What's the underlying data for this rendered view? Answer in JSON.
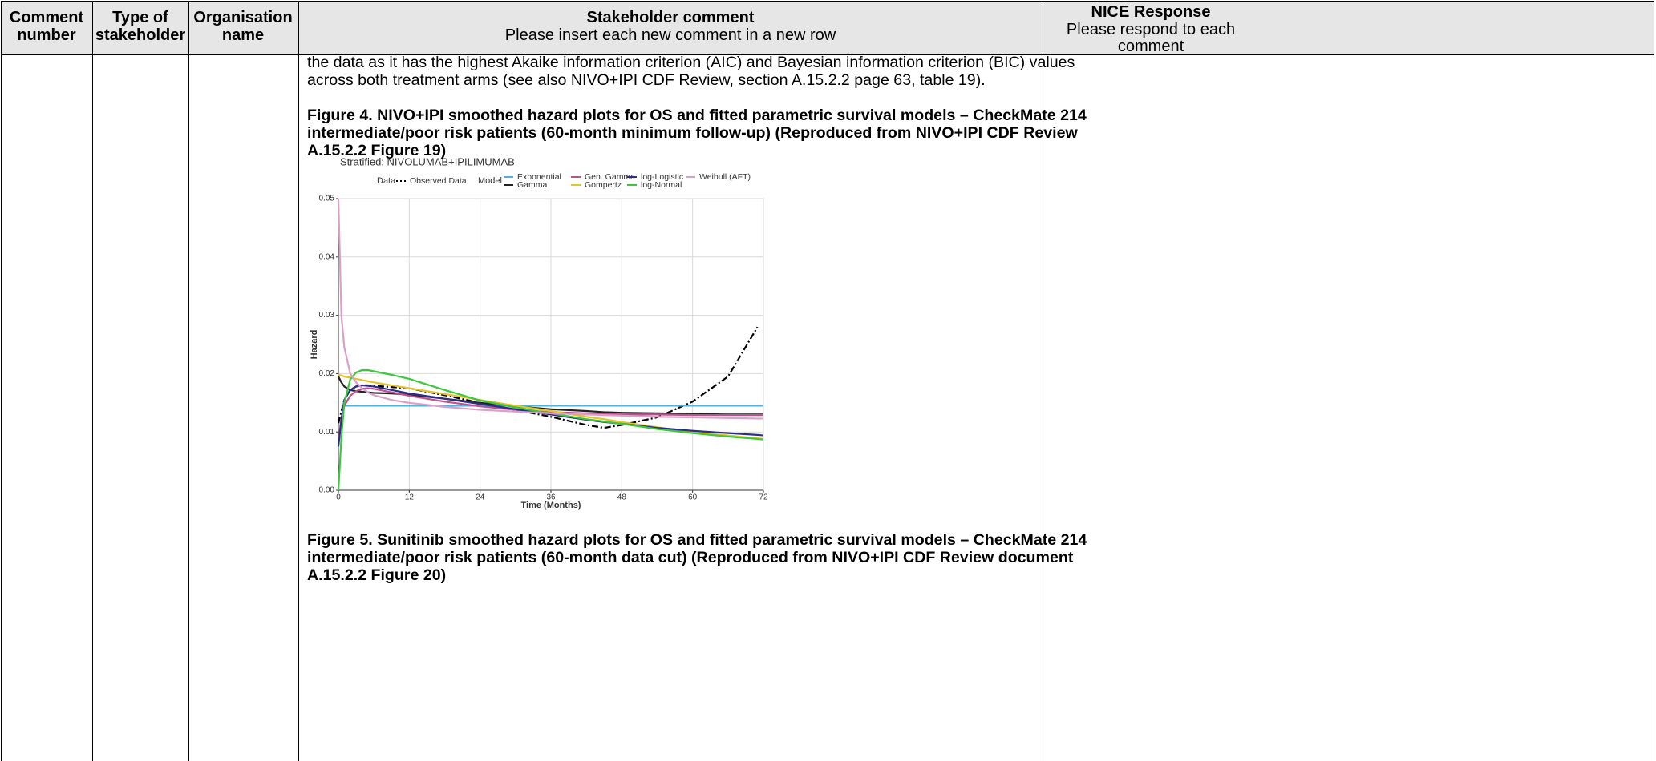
{
  "header": {
    "columns": [
      {
        "lines": [
          "Comment",
          "number"
        ]
      },
      {
        "lines": [
          "Type of",
          "stakeholder"
        ]
      },
      {
        "lines": [
          "Organisation",
          "name"
        ]
      },
      {
        "lines": [
          "Stakeholder comment"
        ],
        "sublines": [
          "Please insert each new comment in a new row"
        ]
      },
      {
        "lines": [
          "NICE Response"
        ],
        "sublines": [
          "Please respond to each",
          "comment"
        ]
      }
    ]
  },
  "body": {
    "paragraph": [
      "the data as it has the highest Akaike information criterion (AIC) and Bayesian information criterion (BIC) values",
      "across both treatment arms (see also NIVO+IPI CDF Review, section A.15.2.2 page 63, table 19)."
    ],
    "figure_4_caption": [
      "Figure 4. NIVO+IPI smoothed hazard plots for OS and fitted parametric survival models – CheckMate 214",
      "intermediate/poor risk patients (60-month minimum follow-up) (Reproduced from NIVO+IPI CDF Review",
      "A.15.2.2 Figure 19)"
    ],
    "figure_5_caption": [
      "Figure 5. Sunitinib smoothed hazard plots for OS and fitted parametric survival models – CheckMate 214",
      "intermediate/poor risk patients (60-month data cut) (Reproduced from NIVO+IPI CDF Review document",
      "A.15.2.2 Figure 20)"
    ]
  },
  "chart_data": {
    "type": "line",
    "title": "Stratified: NIVOLUMAB+IPILIMUMAB",
    "xlabel": "Time (Months)",
    "ylabel": "Hazard",
    "legend": {
      "data_title": "Data",
      "model_title": "Model"
    },
    "grid": true,
    "xlim": [
      0,
      72
    ],
    "ylim": [
      0,
      0.05
    ],
    "xticks": [
      0,
      12,
      24,
      36,
      48,
      60,
      72
    ],
    "yticks": [
      {
        "value": 0,
        "label": "0.00"
      },
      0.01,
      0.02,
      0.03,
      0.04,
      0.05
    ],
    "x": [
      0,
      0.5,
      1,
      2,
      3,
      4,
      5,
      6,
      9,
      12,
      18,
      24,
      30,
      36,
      42,
      45,
      48,
      54,
      60,
      66,
      71,
      72
    ],
    "series": [
      {
        "name": "Observed Data",
        "color": "#000000",
        "line_style": "dashdot",
        "values": [
          0.0115,
          0.0135,
          0.0155,
          0.0172,
          0.0178,
          0.018,
          0.018,
          0.0179,
          0.0177,
          0.0175,
          0.0163,
          0.015,
          0.0138,
          0.0126,
          0.0112,
          0.0107,
          0.0112,
          0.0125,
          0.0152,
          0.0195,
          0.028,
          null
        ]
      },
      {
        "name": "Exponential",
        "color": "#4fb3d9",
        "values": [
          null,
          0.0145,
          0.0145,
          0.0145,
          0.0145,
          0.0145,
          0.0145,
          0.0145,
          0.0145,
          0.0145,
          0.0145,
          0.0145,
          0.0145,
          0.0145,
          0.0145,
          0.0145,
          0.0145,
          0.0145,
          0.0145,
          0.0145,
          0.0145,
          0.0145
        ]
      },
      {
        "name": "Gamma",
        "color": "#222222",
        "values": [
          0.0195,
          0.0185,
          0.0178,
          0.0172,
          0.017,
          0.0169,
          0.0168,
          0.0167,
          0.0166,
          0.0164,
          0.0157,
          0.015,
          0.0144,
          0.0139,
          0.0136,
          0.0134,
          0.0133,
          0.0132,
          0.0131,
          0.013,
          0.013,
          0.013
        ]
      },
      {
        "name": "Gen. Gamma",
        "color": "#c0508f",
        "values": [
          0.008,
          0.0125,
          0.0145,
          0.0162,
          0.017,
          0.0174,
          0.0175,
          0.0174,
          0.0168,
          0.0162,
          0.0152,
          0.0144,
          0.0138,
          0.0134,
          0.0132,
          0.0131,
          0.013,
          0.013,
          0.0129,
          0.0129,
          0.0129,
          0.0129
        ]
      },
      {
        "name": "Gompertz",
        "color": "#e6c229",
        "values": [
          0.0198,
          0.0197,
          0.0195,
          0.0193,
          0.0191,
          0.0189,
          0.0187,
          0.0185,
          0.018,
          0.0175,
          0.0165,
          0.0155,
          0.0145,
          0.0136,
          0.0126,
          0.0122,
          0.0117,
          0.0108,
          0.01,
          0.0094,
          0.0089,
          0.0088
        ]
      },
      {
        "name": "log-Logistic",
        "color": "#2d2d8a",
        "values": [
          0.0075,
          0.012,
          0.0155,
          0.0172,
          0.0178,
          0.018,
          0.0179,
          0.0178,
          0.0172,
          0.0166,
          0.0157,
          0.0148,
          0.0139,
          0.013,
          0.0121,
          0.0117,
          0.0114,
          0.0107,
          0.0102,
          0.0098,
          0.0095,
          0.0094
        ]
      },
      {
        "name": "log-Normal",
        "color": "#3cc83c",
        "values": [
          0.0,
          0.009,
          0.015,
          0.019,
          0.0202,
          0.0206,
          0.0206,
          0.0204,
          0.0198,
          0.0191,
          0.0172,
          0.0154,
          0.0142,
          0.0132,
          0.0122,
          0.0118,
          0.0114,
          0.0105,
          0.0098,
          0.0092,
          0.0088,
          0.0087
        ]
      },
      {
        "name": "Weibull (AFT)",
        "color": "#d9a0c8",
        "values": [
          0.05,
          0.03,
          0.0245,
          0.02,
          0.0185,
          0.0175,
          0.0168,
          0.0163,
          0.0155,
          0.015,
          0.0143,
          0.0138,
          0.0135,
          0.0132,
          0.013,
          0.0129,
          0.0128,
          0.0126,
          0.0125,
          0.0124,
          0.0123,
          0.0123
        ]
      }
    ]
  }
}
